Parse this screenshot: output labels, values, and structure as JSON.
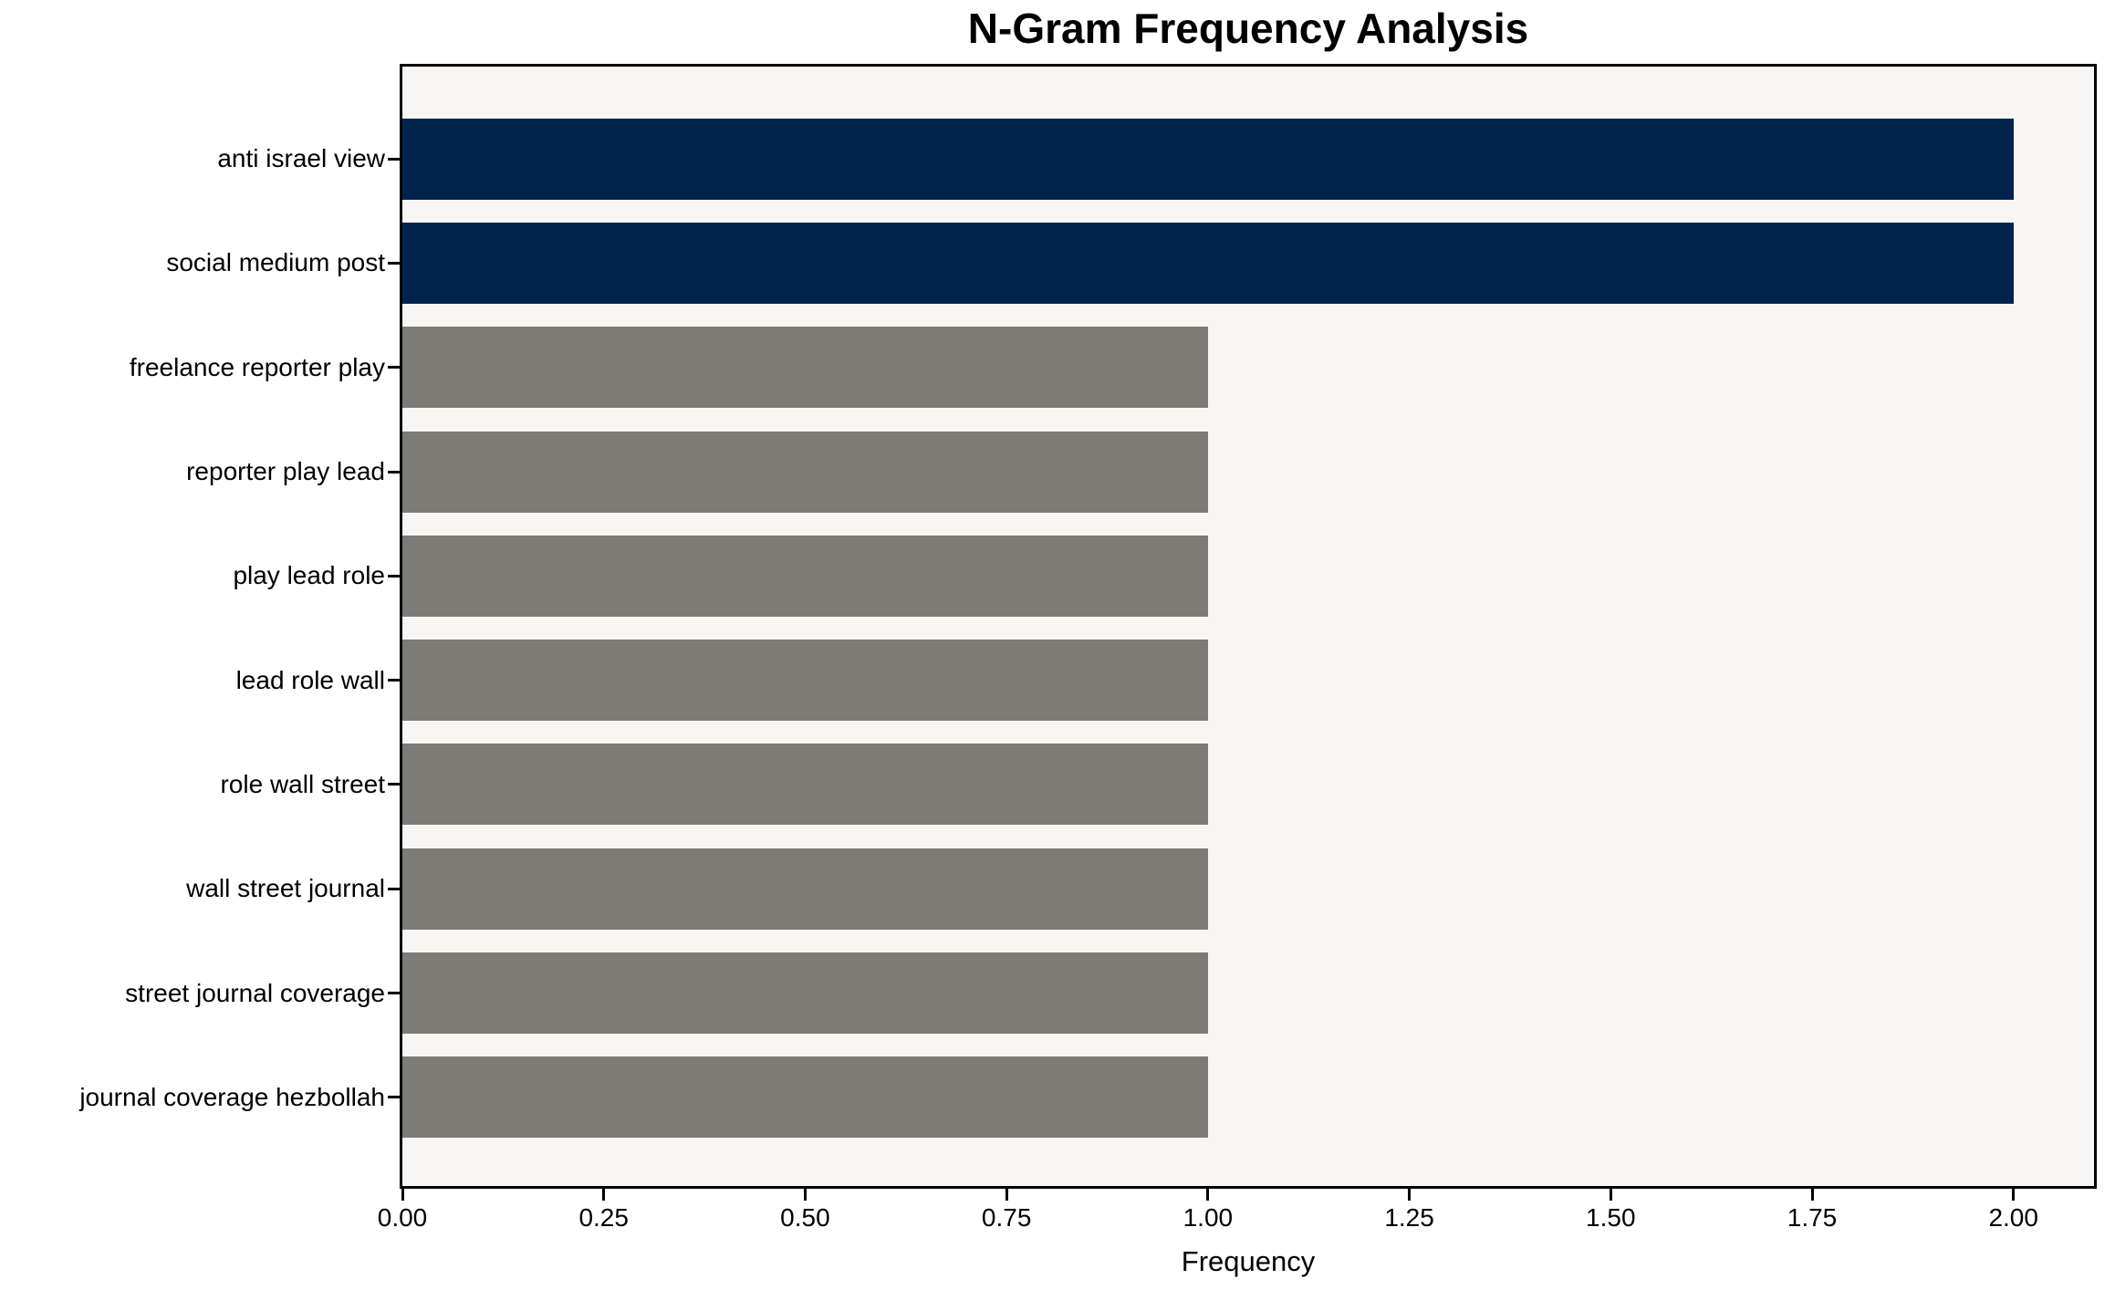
{
  "chart_data": {
    "type": "bar",
    "orientation": "horizontal",
    "title": "N-Gram Frequency Analysis",
    "xlabel": "Frequency",
    "ylabel": "",
    "categories": [
      "anti israel view",
      "social medium post",
      "freelance reporter play",
      "reporter play lead",
      "play lead role",
      "lead role wall",
      "role wall street",
      "wall street journal",
      "street journal coverage",
      "journal coverage hezbollah"
    ],
    "values": [
      2,
      2,
      1,
      1,
      1,
      1,
      1,
      1,
      1,
      1
    ],
    "bar_colors": [
      "#01244f",
      "#01244f",
      "#7c7b76",
      "#7c7b76",
      "#7c7b76",
      "#7c7b76",
      "#7c7b76",
      "#7c7b76",
      "#7c7b76",
      "#7c7b76"
    ],
    "xlim": [
      0,
      2.1
    ],
    "xticks": [
      0,
      0.25,
      0.5,
      0.75,
      1,
      1.25,
      1.5,
      1.75,
      2
    ],
    "xtick_labels": [
      "0.00",
      "0.25",
      "0.50",
      "0.75",
      "1.00",
      "1.25",
      "1.50",
      "1.75",
      "2.00"
    ],
    "grid": false,
    "legend": null,
    "colors": {
      "highlight_bar": "#01244f",
      "default_bar": "#7c7b76",
      "plot_background": "#f7f6f5",
      "figure_background": "#ffffff",
      "spine": "#000000",
      "text": "#000000"
    }
  }
}
